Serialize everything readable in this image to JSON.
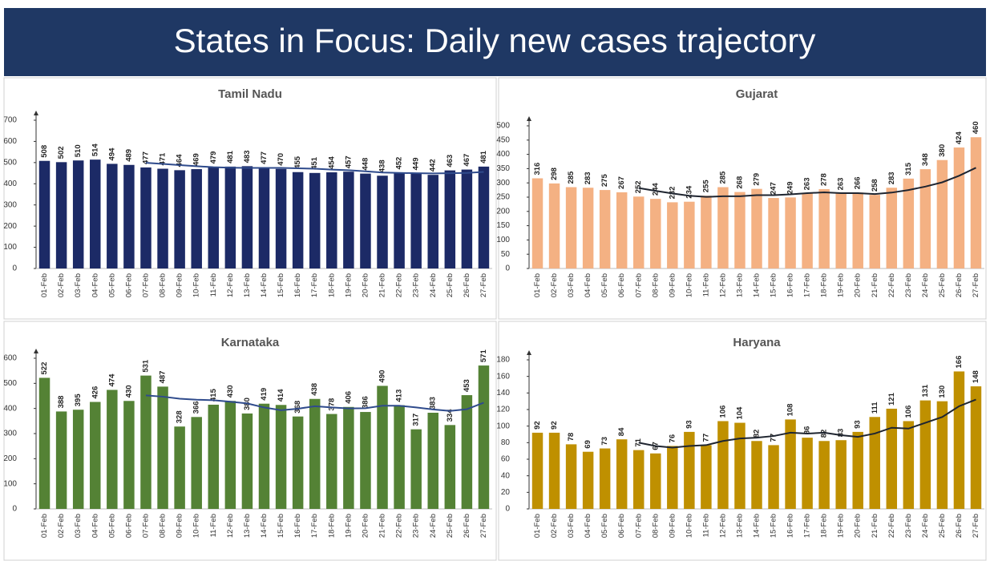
{
  "header": {
    "title": "States in Focus: Daily new cases trajectory"
  },
  "chart_data": [
    {
      "type": "bar",
      "title": "Tamil Nadu",
      "categories": [
        "01-Feb",
        "02-Feb",
        "03-Feb",
        "04-Feb",
        "05-Feb",
        "06-Feb",
        "07-Feb",
        "08-Feb",
        "09-Feb",
        "10-Feb",
        "11-Feb",
        "12-Feb",
        "13-Feb",
        "14-Feb",
        "15-Feb",
        "16-Feb",
        "17-Feb",
        "18-Feb",
        "19-Feb",
        "20-Feb",
        "21-Feb",
        "22-Feb",
        "23-Feb",
        "24-Feb",
        "25-Feb",
        "26-Feb",
        "27-Feb"
      ],
      "series": [
        {
          "type": "bar",
          "color": "#1c2a66",
          "values": [
            508,
            502,
            510,
            514,
            494,
            489,
            477,
            471,
            464,
            469,
            479,
            481,
            483,
            477,
            470,
            455,
            451,
            454,
            457,
            448,
            438,
            452,
            449,
            442,
            463,
            467,
            481
          ]
        },
        {
          "type": "line",
          "color": "#2f4b8c",
          "values": [
            null,
            null,
            null,
            null,
            null,
            null,
            499,
            494,
            488,
            483,
            478,
            476,
            475,
            475,
            475,
            473,
            471,
            467,
            464,
            459,
            453,
            451,
            450,
            449,
            450,
            451,
            456
          ]
        }
      ],
      "ylim": [
        0,
        700
      ],
      "yticks": [
        0,
        100,
        200,
        300,
        400,
        500,
        600,
        700
      ]
    },
    {
      "type": "bar",
      "title": "Gujarat",
      "categories": [
        "01-Feb",
        "02-Feb",
        "03-Feb",
        "04-Feb",
        "05-Feb",
        "06-Feb",
        "07-Feb",
        "08-Feb",
        "09-Feb",
        "10-Feb",
        "11-Feb",
        "12-Feb",
        "13-Feb",
        "14-Feb",
        "15-Feb",
        "16-Feb",
        "17-Feb",
        "18-Feb",
        "19-Feb",
        "20-Feb",
        "21-Feb",
        "22-Feb",
        "23-Feb",
        "24-Feb",
        "25-Feb",
        "26-Feb",
        "27-Feb"
      ],
      "series": [
        {
          "type": "bar",
          "color": "#f4b183",
          "values": [
            316,
            298,
            285,
            283,
            275,
            267,
            252,
            244,
            232,
            234,
            255,
            285,
            268,
            279,
            247,
            249,
            263,
            278,
            263,
            266,
            258,
            283,
            315,
            348,
            380,
            424,
            460
          ]
        },
        {
          "type": "line",
          "color": "#1f2530",
          "values": [
            null,
            null,
            null,
            null,
            null,
            null,
            282,
            272,
            263,
            255,
            251,
            253,
            253,
            257,
            257,
            260,
            264,
            267,
            264,
            264,
            261,
            266,
            275,
            287,
            302,
            325,
            353
          ]
        }
      ],
      "ylim": [
        0,
        500
      ],
      "yticks": [
        0,
        50,
        100,
        150,
        200,
        250,
        300,
        350,
        400,
        450,
        500
      ]
    },
    {
      "type": "bar",
      "title": "Karnataka",
      "categories": [
        "01-Feb",
        "02-Feb",
        "03-Feb",
        "04-Feb",
        "05-Feb",
        "06-Feb",
        "07-Feb",
        "08-Feb",
        "09-Feb",
        "10-Feb",
        "11-Feb",
        "12-Feb",
        "13-Feb",
        "14-Feb",
        "15-Feb",
        "16-Feb",
        "17-Feb",
        "18-Feb",
        "19-Feb",
        "20-Feb",
        "21-Feb",
        "22-Feb",
        "23-Feb",
        "24-Feb",
        "25-Feb",
        "26-Feb",
        "27-Feb"
      ],
      "series": [
        {
          "type": "bar",
          "color": "#548235",
          "values": [
            522,
            388,
            395,
            426,
            474,
            430,
            531,
            487,
            328,
            366,
            415,
            430,
            380,
            419,
            414,
            368,
            438,
            378,
            406,
            386,
            490,
            413,
            317,
            383,
            334,
            453,
            571
          ]
        },
        {
          "type": "line",
          "color": "#2f4b8c",
          "values": [
            null,
            null,
            null,
            null,
            null,
            null,
            452,
            447,
            439,
            435,
            433,
            427,
            420,
            404,
            393,
            399,
            409,
            404,
            400,
            401,
            411,
            411,
            404,
            396,
            390,
            397,
            423
          ]
        }
      ],
      "ylim": [
        0,
        600
      ],
      "yticks": [
        0,
        100,
        200,
        300,
        400,
        500,
        600
      ]
    },
    {
      "type": "bar",
      "title": "Haryana",
      "categories": [
        "01-Feb",
        "02-Feb",
        "03-Feb",
        "04-Feb",
        "05-Feb",
        "06-Feb",
        "07-Feb",
        "08-Feb",
        "09-Feb",
        "10-Feb",
        "11-Feb",
        "12-Feb",
        "13-Feb",
        "14-Feb",
        "15-Feb",
        "16-Feb",
        "17-Feb",
        "18-Feb",
        "19-Feb",
        "20-Feb",
        "21-Feb",
        "22-Feb",
        "23-Feb",
        "24-Feb",
        "25-Feb",
        "26-Feb",
        "27-Feb"
      ],
      "series": [
        {
          "type": "bar",
          "color": "#bf9000",
          "values": [
            92,
            92,
            78,
            69,
            73,
            84,
            71,
            67,
            76,
            93,
            77,
            106,
            104,
            82,
            77,
            108,
            86,
            82,
            83,
            93,
            111,
            121,
            106,
            131,
            130,
            166,
            148
          ]
        },
        {
          "type": "line",
          "color": "#1f2530",
          "values": [
            null,
            null,
            null,
            null,
            null,
            null,
            80,
            76,
            74,
            76,
            77,
            82,
            85,
            86,
            88,
            92,
            91,
            92,
            89,
            87,
            91,
            98,
            97,
            104,
            111,
            124,
            132
          ]
        }
      ],
      "ylim": [
        0,
        180
      ],
      "yticks": [
        0,
        20,
        40,
        60,
        80,
        100,
        120,
        140,
        160,
        180
      ]
    }
  ]
}
